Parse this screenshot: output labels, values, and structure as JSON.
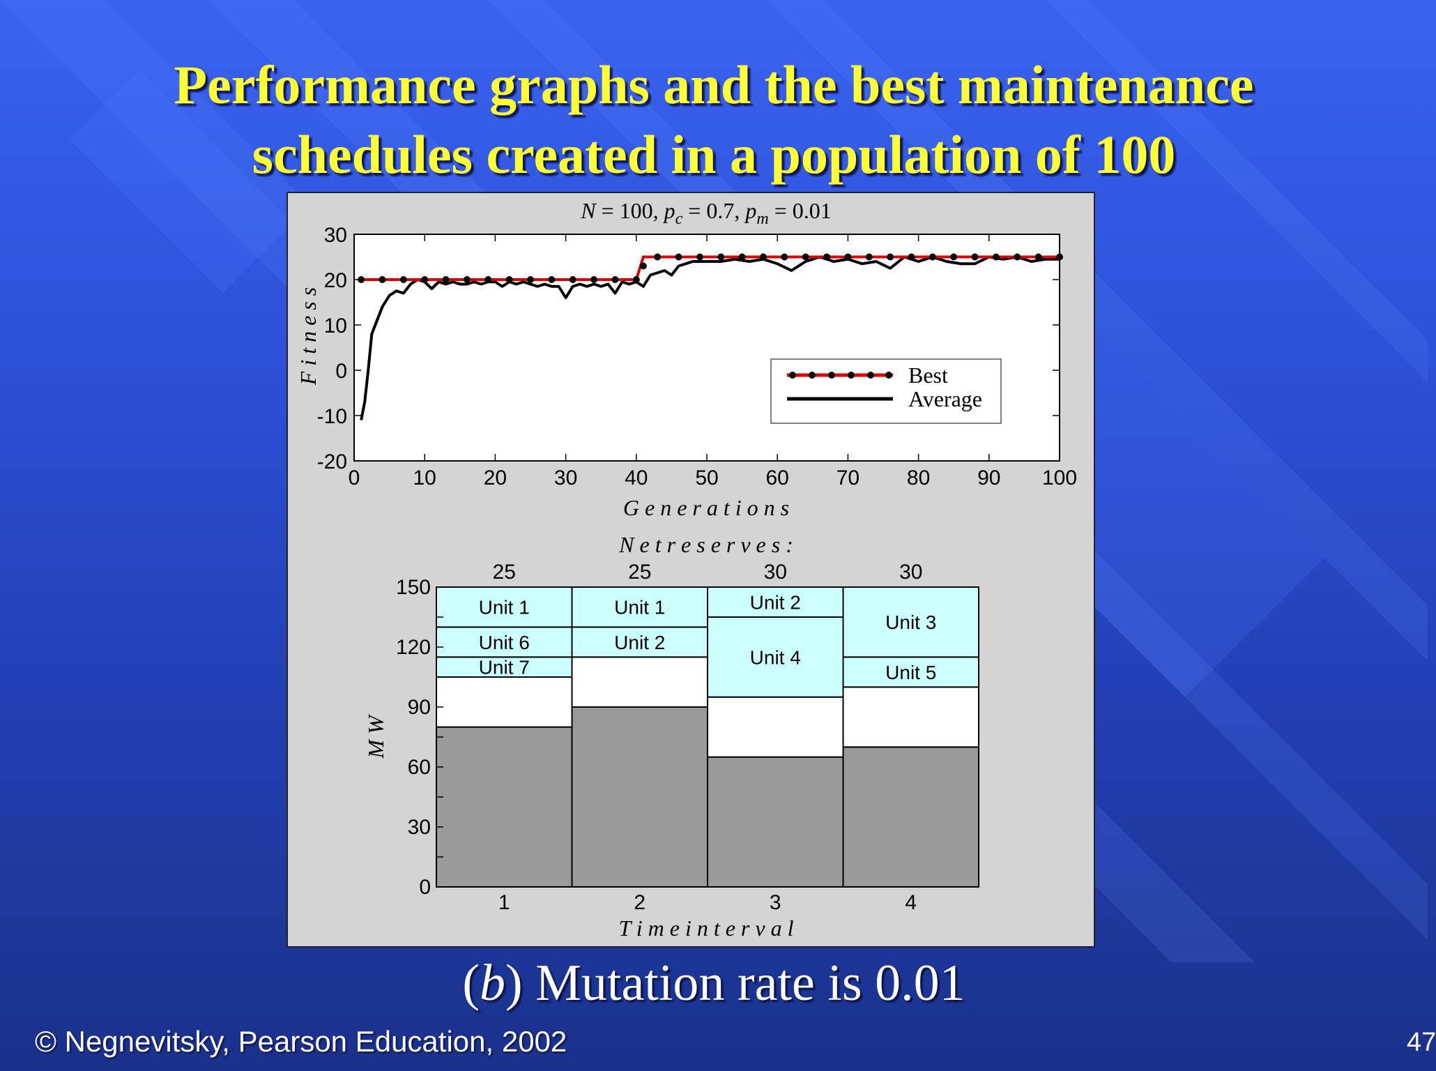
{
  "slide": {
    "title_line1": "Performance graphs and the best maintenance",
    "title_line2": "schedules created in a population of 100",
    "subcaption_open": "(",
    "subcaption_letter": "b",
    "subcaption_rest": ") Mutation rate is 0.01",
    "footer": "© Negnevitsky, Pearson Education, 2002",
    "page_number": "47"
  },
  "chart_data": [
    {
      "type": "line",
      "title": "N = 100,  pc = 0.7,  pm = 0.01",
      "title_parts": {
        "n": "N",
        "n_val": " = 100,  ",
        "pc": "p",
        "pc_sub": "c",
        "pc_val": " = 0.7,  ",
        "pm": "p",
        "pm_sub": "m",
        "pm_val": " = 0.01"
      },
      "xlabel": "G e n e r a t i o n s",
      "ylabel": "F i t n e s s",
      "xlim": [
        0,
        100
      ],
      "ylim": [
        -20,
        30
      ],
      "xticks": [
        "0",
        "10",
        "20",
        "30",
        "40",
        "50",
        "60",
        "70",
        "80",
        "90",
        "100"
      ],
      "yticks": [
        "30",
        "20",
        "10",
        "0",
        "-10",
        "-20"
      ],
      "grid": false,
      "legend_position": "lower-right",
      "series": [
        {
          "name": "Best",
          "color": "#dd0000",
          "markers": true,
          "x": [
            1,
            40,
            41,
            100
          ],
          "y": [
            20,
            20,
            25,
            25
          ],
          "marker_x": [
            1,
            4,
            7,
            10,
            13,
            16,
            19,
            22,
            25,
            28,
            31,
            34,
            37,
            40,
            41,
            43,
            46,
            49,
            52,
            55,
            58,
            61,
            64,
            67,
            70,
            73,
            76,
            79,
            82,
            85,
            88,
            91,
            94,
            97,
            100
          ],
          "marker_y": [
            20,
            20,
            20,
            20,
            20,
            20,
            20,
            20,
            20,
            20,
            20,
            20,
            20,
            20,
            23,
            25,
            25,
            25,
            25,
            25,
            25,
            25,
            25,
            25,
            25,
            25,
            25,
            25,
            25,
            25,
            25,
            25,
            25,
            25,
            25
          ]
        },
        {
          "name": "Average",
          "color": "#000000",
          "markers": false,
          "x": [
            1,
            1.5,
            2,
            2.5,
            3,
            4,
            5,
            6,
            7,
            8,
            9,
            10,
            11,
            12,
            13,
            14,
            15,
            16,
            17,
            18,
            19,
            20,
            21,
            22,
            23,
            24,
            25,
            26,
            27,
            28,
            29,
            30,
            31,
            32,
            33,
            34,
            35,
            36,
            37,
            38,
            39,
            40,
            41,
            42,
            43,
            44,
            45,
            46,
            47,
            48,
            49,
            50,
            52,
            54,
            56,
            58,
            60,
            62,
            64,
            66,
            68,
            70,
            72,
            74,
            76,
            78,
            80,
            82,
            84,
            86,
            88,
            90,
            92,
            94,
            96,
            98,
            100
          ],
          "y": [
            -11,
            -7,
            0,
            8,
            10,
            14,
            16.5,
            17.5,
            17,
            19,
            20,
            19.5,
            18,
            19.5,
            19,
            19.5,
            19,
            19,
            19.5,
            19,
            19.5,
            19.5,
            18.5,
            19.5,
            19,
            19.5,
            19,
            18.5,
            19,
            18.5,
            18.5,
            16,
            18.5,
            19,
            18.5,
            19,
            18.5,
            19,
            17,
            19.5,
            19,
            19.5,
            18.5,
            21,
            21.5,
            22,
            21,
            23,
            23.5,
            24,
            24,
            24,
            24,
            24.5,
            24,
            24.5,
            23.5,
            22,
            24,
            25,
            24,
            24.5,
            23.5,
            24,
            22.5,
            25,
            24,
            25,
            24,
            23.5,
            23.5,
            25,
            24.5,
            25,
            24,
            24.5,
            24.5
          ]
        }
      ]
    },
    {
      "type": "bar",
      "stacked": true,
      "title": "N e t   r e s e r v e s :",
      "xlabel": "T i m e   i n t e r v a l",
      "ylabel": "M W",
      "ylim": [
        0,
        150
      ],
      "yticks": [
        "150",
        "120",
        "90",
        "60",
        "30",
        "0"
      ],
      "categories": [
        "1",
        "2",
        "3",
        "4"
      ],
      "net_reserves": [
        "25",
        "25",
        "30",
        "30"
      ],
      "load": [
        80,
        90,
        65,
        70
      ],
      "reserve": [
        25,
        25,
        30,
        30
      ],
      "maintenance": [
        [
          {
            "label": "Unit 7",
            "value": 10
          },
          {
            "label": "Unit 6",
            "value": 15
          },
          {
            "label": "Unit 1",
            "value": 20
          }
        ],
        [
          {
            "label": "Unit 2",
            "value": 15
          },
          {
            "label": "Unit 1",
            "value": 20
          }
        ],
        [
          {
            "label": "Unit 4",
            "value": 40
          },
          {
            "label": "Unit 2",
            "value": 15
          }
        ],
        [
          {
            "label": "Unit 5",
            "value": 15
          },
          {
            "label": "Unit 3",
            "value": 35
          }
        ]
      ],
      "colors": {
        "load": "#9a9a9a",
        "reserve": "#ffffff",
        "maintenance": "#ccffff"
      }
    }
  ]
}
